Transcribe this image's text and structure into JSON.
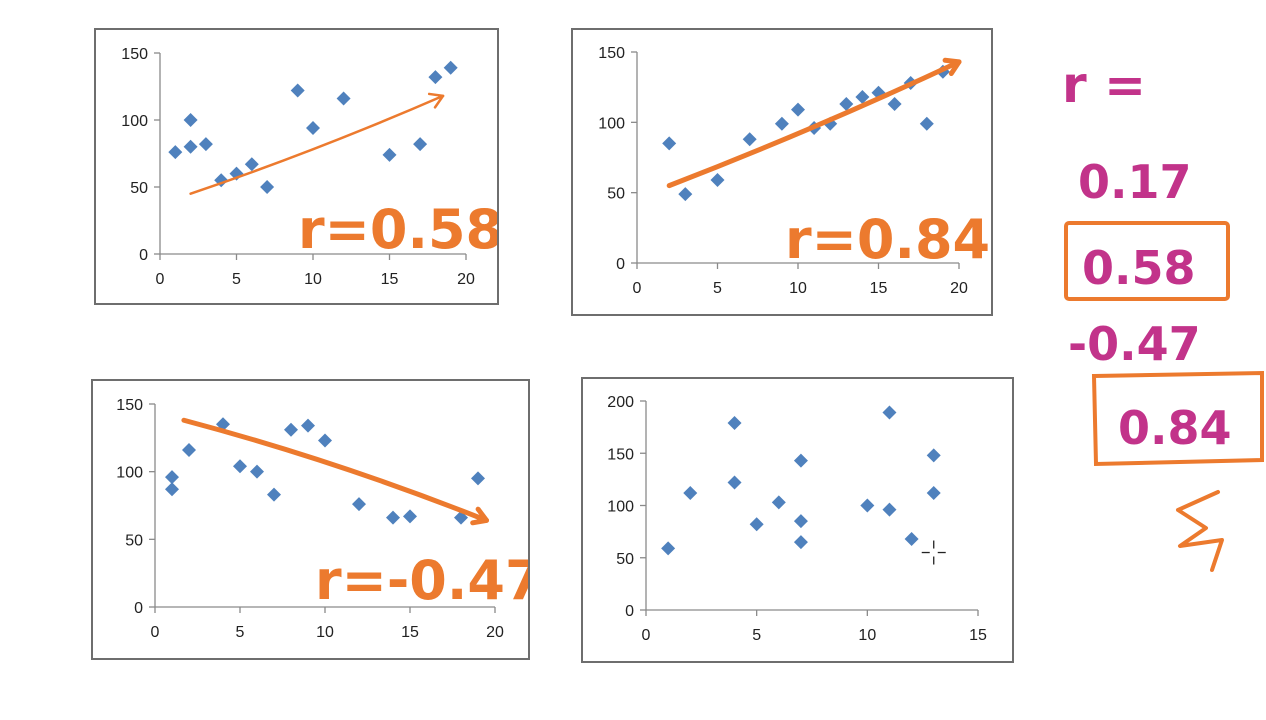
{
  "colors": {
    "marker": "#4f81bd",
    "orange": "#ec7a2e",
    "pink": "#c2338a",
    "axis": "#8a8a8a",
    "frame": "#6e6e6e"
  },
  "annotations": {
    "panel1": "r=0.58",
    "panel2": "r=0.84",
    "panel3": "r=-0.47",
    "side_r": "r =",
    "side_values": [
      "0.17",
      "0.58",
      "-0.47",
      "0.84"
    ],
    "boxed_values": [
      "0.58",
      "0.84"
    ]
  },
  "chart_data": [
    {
      "type": "scatter",
      "title": "",
      "xlabel": "",
      "ylabel": "",
      "xlim": [
        0,
        20
      ],
      "ylim": [
        0,
        150
      ],
      "xticks": [
        0,
        5,
        10,
        15,
        20
      ],
      "yticks": [
        0,
        50,
        100,
        150
      ],
      "x": [
        1,
        2,
        2,
        3,
        4,
        5,
        6,
        7,
        9,
        10,
        12,
        15,
        17,
        18,
        19
      ],
      "y": [
        76,
        80,
        100,
        82,
        55,
        60,
        67,
        50,
        122,
        94,
        116,
        74,
        82,
        132,
        139
      ],
      "trend_arrow": {
        "from": [
          2,
          45
        ],
        "to": [
          18.5,
          118
        ],
        "direction": "up"
      }
    },
    {
      "type": "scatter",
      "title": "",
      "xlabel": "",
      "ylabel": "",
      "xlim": [
        0,
        20
      ],
      "ylim": [
        0,
        150
      ],
      "xticks": [
        0,
        5,
        10,
        15,
        20
      ],
      "yticks": [
        0,
        50,
        100,
        150
      ],
      "x": [
        2,
        3,
        5,
        7,
        9,
        10,
        11,
        12,
        13,
        14,
        15,
        16,
        17,
        18,
        19
      ],
      "y": [
        85,
        49,
        59,
        88,
        99,
        109,
        96,
        99,
        113,
        118,
        121,
        113,
        128,
        99,
        136
      ],
      "trend_arrow": {
        "from": [
          2,
          55
        ],
        "to": [
          20,
          143
        ],
        "direction": "up"
      }
    },
    {
      "type": "scatter",
      "title": "",
      "xlabel": "",
      "ylabel": "",
      "xlim": [
        0,
        20
      ],
      "ylim": [
        0,
        150
      ],
      "xticks": [
        0,
        5,
        10,
        15,
        20
      ],
      "yticks": [
        0,
        50,
        100,
        150
      ],
      "x": [
        1,
        1,
        2,
        4,
        5,
        6,
        7,
        8,
        9,
        10,
        12,
        14,
        15,
        18,
        19
      ],
      "y": [
        96,
        87,
        116,
        135,
        104,
        100,
        83,
        131,
        134,
        123,
        76,
        66,
        67,
        66,
        95
      ],
      "trend_arrow": {
        "from": [
          1.7,
          138
        ],
        "to": [
          19.5,
          64
        ],
        "direction": "down"
      }
    },
    {
      "type": "scatter",
      "title": "",
      "xlabel": "",
      "ylabel": "",
      "xlim": [
        0,
        15
      ],
      "ylim": [
        0,
        200
      ],
      "xticks": [
        0,
        5,
        10,
        15
      ],
      "yticks": [
        0,
        50,
        100,
        150,
        200
      ],
      "x": [
        1,
        2,
        4,
        4,
        5,
        6,
        7,
        7,
        7,
        10,
        11,
        11,
        12,
        13,
        13
      ],
      "y": [
        59,
        112,
        179,
        122,
        82,
        103,
        143,
        85,
        65,
        100,
        189,
        96,
        68,
        148,
        112
      ]
    }
  ]
}
